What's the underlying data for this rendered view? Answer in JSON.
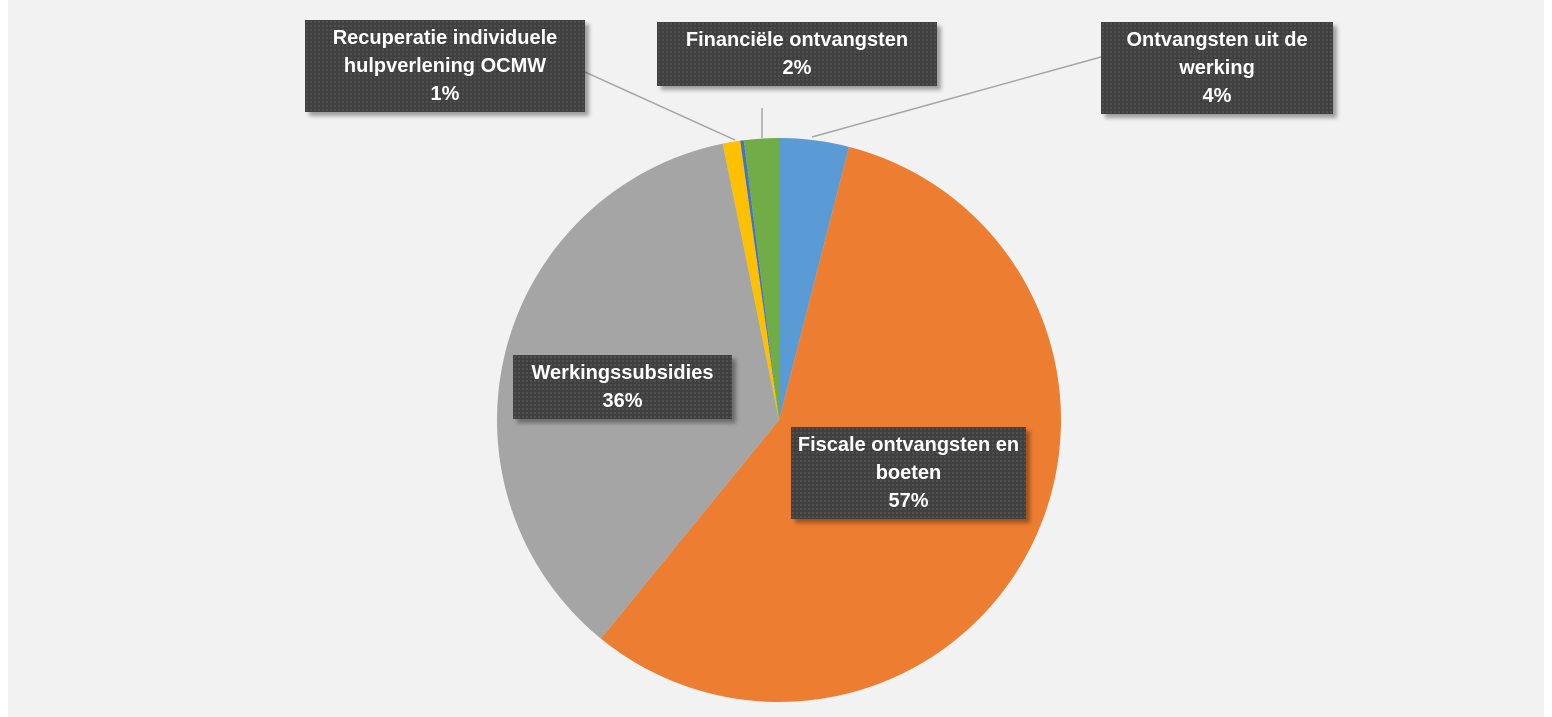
{
  "chart_data": {
    "type": "pie",
    "categories": [
      "Ontvangsten uit de werking",
      "Fiscale ontvangsten en boeten",
      "Werkingssubsidies",
      "Recuperatie individuele hulpverlening OCMW",
      null,
      "Financiële ontvangsten"
    ],
    "values": [
      4,
      57,
      36,
      1,
      0.2,
      2
    ],
    "value_labels": [
      "4%",
      "57%",
      "36%",
      "1%",
      null,
      "2%"
    ],
    "colors": [
      "#5b9bd5",
      "#ed7d31",
      "#a5a5a5",
      "#ffc000",
      "#4472c4",
      "#70ad47"
    ]
  }
}
